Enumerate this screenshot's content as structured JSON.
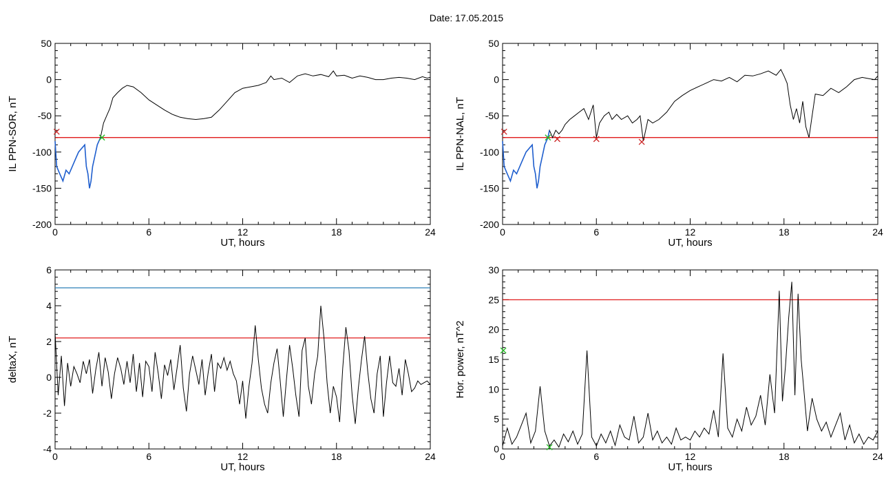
{
  "page": {
    "title": "Date:  17.05.2015"
  },
  "colors": {
    "series": "#000000",
    "threshold": "#dd0000",
    "upper_threshold": "#2a7fb8",
    "highlight": "#1f5fcf",
    "marker_red": "#cc2222",
    "marker_green": "#22bb22"
  },
  "chart_data": [
    {
      "id": "il-sor",
      "type": "line",
      "xlabel": "UT, hours",
      "ylabel": "IL PPN-SOR, nT",
      "xlim": [
        0,
        24
      ],
      "ylim": [
        -200,
        50
      ],
      "xticks": [
        0,
        6,
        12,
        18,
        24
      ],
      "yticks": [
        -200,
        -150,
        -100,
        -50,
        0,
        50
      ],
      "threshold": -80,
      "series": [
        {
          "x": [
            0,
            0.1,
            0.3,
            0.5,
            0.7,
            0.9,
            1.1,
            1.3,
            1.5,
            1.7,
            1.9,
            2.0,
            2.1,
            2.2,
            2.3,
            2.4,
            2.5,
            2.7,
            2.9,
            3.1,
            3.3,
            3.5,
            3.7,
            4.0,
            4.3,
            4.6,
            5.0,
            5.5,
            6.0,
            6.5,
            7.0,
            7.5,
            8.0,
            8.5,
            9.0,
            9.5,
            10.0,
            10.5,
            11.0,
            11.5,
            12.0,
            12.5,
            13.0,
            13.5,
            13.8,
            14.0,
            14.5,
            15.0,
            15.5,
            16.0,
            16.5,
            17.0,
            17.5,
            17.8,
            18.0,
            18.5,
            19.0,
            19.5,
            20.0,
            20.5,
            21.0,
            21.5,
            22.0,
            22.5,
            23.0,
            23.5,
            23.8,
            24.0
          ],
          "y": [
            -85,
            -120,
            -130,
            -140,
            -125,
            -130,
            -120,
            -110,
            -100,
            -95,
            -90,
            -120,
            -130,
            -150,
            -140,
            -120,
            -110,
            -90,
            -80,
            -60,
            -50,
            -40,
            -25,
            -18,
            -12,
            -8,
            -10,
            -18,
            -28,
            -35,
            -42,
            -48,
            -52,
            -54,
            -55,
            -54,
            -52,
            -42,
            -30,
            -18,
            -12,
            -10,
            -8,
            -4,
            5,
            0,
            2,
            -4,
            5,
            8,
            5,
            7,
            4,
            12,
            5,
            6,
            2,
            5,
            3,
            0,
            0,
            2,
            3,
            2,
            0,
            4,
            2,
            3
          ]
        }
      ],
      "highlight": {
        "x_start": 0,
        "x_end": 3
      },
      "markers": [
        {
          "x": 0.1,
          "y": -72,
          "color": "red"
        },
        {
          "x": 3.0,
          "y": -80,
          "color": "green"
        }
      ]
    },
    {
      "id": "il-nal",
      "type": "line",
      "xlabel": "UT, hours",
      "ylabel": "IL PPN-NAL, nT",
      "xlim": [
        0,
        24
      ],
      "ylim": [
        -200,
        50
      ],
      "xticks": [
        0,
        6,
        12,
        18,
        24
      ],
      "yticks": [
        -200,
        -150,
        -100,
        -50,
        0,
        50
      ],
      "threshold": -80,
      "series": [
        {
          "x": [
            0,
            0.1,
            0.3,
            0.5,
            0.7,
            0.9,
            1.1,
            1.3,
            1.5,
            1.7,
            1.9,
            2.0,
            2.1,
            2.2,
            2.3,
            2.4,
            2.5,
            2.7,
            2.9,
            3.0,
            3.2,
            3.4,
            3.6,
            3.8,
            4.0,
            4.3,
            4.6,
            4.9,
            5.2,
            5.5,
            5.8,
            6.0,
            6.2,
            6.5,
            6.8,
            7.0,
            7.3,
            7.6,
            8.0,
            8.3,
            8.6,
            8.8,
            9.0,
            9.3,
            9.6,
            10.0,
            10.5,
            11.0,
            11.5,
            12.0,
            12.5,
            13.0,
            13.5,
            14.0,
            14.5,
            15.0,
            15.5,
            16.0,
            16.5,
            17.0,
            17.5,
            17.8,
            18.0,
            18.2,
            18.4,
            18.6,
            18.8,
            19.0,
            19.2,
            19.4,
            19.6,
            19.8,
            20.0,
            20.5,
            21.0,
            21.5,
            22.0,
            22.5,
            23.0,
            23.5,
            23.8,
            24.0
          ],
          "y": [
            -85,
            -120,
            -130,
            -140,
            -125,
            -130,
            -120,
            -110,
            -100,
            -95,
            -90,
            -120,
            -130,
            -150,
            -140,
            -120,
            -110,
            -90,
            -80,
            -70,
            -80,
            -70,
            -75,
            -70,
            -62,
            -55,
            -50,
            -45,
            -40,
            -55,
            -35,
            -80,
            -60,
            -50,
            -45,
            -55,
            -48,
            -55,
            -50,
            -60,
            -55,
            -50,
            -85,
            -55,
            -60,
            -55,
            -45,
            -30,
            -22,
            -15,
            -10,
            -5,
            0,
            -2,
            3,
            -3,
            6,
            5,
            8,
            12,
            6,
            14,
            5,
            -5,
            -35,
            -55,
            -40,
            -60,
            -30,
            -65,
            -80,
            -50,
            -20,
            -22,
            -12,
            -18,
            -10,
            0,
            3,
            1,
            0,
            5
          ]
        }
      ],
      "highlight": {
        "x_start": 0,
        "x_end": 3
      },
      "markers": [
        {
          "x": 0.1,
          "y": -72,
          "color": "red"
        },
        {
          "x": 2.9,
          "y": -80,
          "color": "green"
        },
        {
          "x": 3.5,
          "y": -82,
          "color": "red"
        },
        {
          "x": 6.0,
          "y": -82,
          "color": "red"
        },
        {
          "x": 8.9,
          "y": -86,
          "color": "red"
        }
      ]
    },
    {
      "id": "delta-x",
      "type": "line",
      "xlabel": "UT, hours",
      "ylabel": "deltaX, nT",
      "xlim": [
        0,
        24
      ],
      "ylim": [
        -4,
        6
      ],
      "xticks": [
        0,
        6,
        12,
        18,
        24
      ],
      "yticks": [
        -4,
        -2,
        0,
        2,
        4,
        6
      ],
      "threshold": 2.2,
      "upper_threshold": 5,
      "series": [
        {
          "x": [
            0,
            0.2,
            0.4,
            0.6,
            0.8,
            1.0,
            1.2,
            1.4,
            1.6,
            1.8,
            2.0,
            2.2,
            2.4,
            2.6,
            2.8,
            3.0,
            3.2,
            3.4,
            3.6,
            3.8,
            4.0,
            4.2,
            4.4,
            4.6,
            4.8,
            5.0,
            5.2,
            5.4,
            5.6,
            5.8,
            6.0,
            6.2,
            6.4,
            6.6,
            6.8,
            7.0,
            7.2,
            7.4,
            7.6,
            7.8,
            8.0,
            8.2,
            8.4,
            8.6,
            8.8,
            9.0,
            9.2,
            9.4,
            9.6,
            9.8,
            10.0,
            10.2,
            10.4,
            10.6,
            10.8,
            11.0,
            11.2,
            11.4,
            11.6,
            11.8,
            12.0,
            12.2,
            12.4,
            12.6,
            12.8,
            13.0,
            13.2,
            13.4,
            13.6,
            13.8,
            14.0,
            14.2,
            14.4,
            14.6,
            14.8,
            15.0,
            15.2,
            15.4,
            15.6,
            15.8,
            16.0,
            16.2,
            16.4,
            16.6,
            16.8,
            17.0,
            17.2,
            17.4,
            17.6,
            17.8,
            18.0,
            18.2,
            18.4,
            18.6,
            18.8,
            19.0,
            19.2,
            19.4,
            19.6,
            19.8,
            20.0,
            20.2,
            20.4,
            20.6,
            20.8,
            21.0,
            21.2,
            21.4,
            21.6,
            21.8,
            22.0,
            22.2,
            22.4,
            22.6,
            22.8,
            23.0,
            23.2,
            23.4,
            23.6,
            23.8,
            24.0
          ],
          "y": [
            2.5,
            -1,
            1.2,
            -1.6,
            0.8,
            -0.5,
            0.6,
            0.2,
            -0.3,
            0.9,
            0.2,
            1.0,
            -0.9,
            0.4,
            1.4,
            -0.5,
            1.1,
            0.3,
            -1.2,
            0.2,
            1.1,
            0.5,
            -0.4,
            0.9,
            -0.3,
            1.3,
            -0.8,
            0.8,
            -1.1,
            0.9,
            0.6,
            -0.8,
            1.4,
            0.2,
            -1.2,
            0.7,
            0.1,
            1.0,
            -0.7,
            0.5,
            1.8,
            -0.6,
            -1.9,
            0.2,
            1.2,
            0.4,
            -0.4,
            1.0,
            -1.0,
            0.3,
            1.3,
            -0.8,
            0.8,
            0.5,
            1.1,
            0.4,
            0.9,
            0.2,
            -0.2,
            -1.5,
            -0.2,
            -2.3,
            -0.5,
            0.8,
            2.9,
            1.0,
            -0.6,
            -1.5,
            -2.0,
            -0.3,
            0.8,
            1.6,
            -0.2,
            -2.2,
            -0.1,
            1.8,
            0.5,
            -1.0,
            -2.2,
            1.5,
            2.2,
            -0.5,
            -1.5,
            0.2,
            1.2,
            4.0,
            2.2,
            -0.3,
            -2.0,
            -0.5,
            -1.1,
            -2.5,
            0.5,
            2.8,
            1.5,
            -1.0,
            -2.6,
            -0.6,
            1.0,
            2.3,
            0.3,
            -1.2,
            -2.0,
            0.2,
            1.2,
            -2.2,
            -0.3,
            1.2,
            -0.3,
            -0.5,
            0.5,
            -1.0,
            1.0,
            0.2,
            -0.8,
            -0.6,
            -0.2,
            -0.4,
            -0.3,
            -0.2,
            -0.4
          ]
        }
      ]
    },
    {
      "id": "hor-power",
      "type": "line",
      "xlabel": "UT, hours",
      "ylabel": "Hor. power, nT^2",
      "xlim": [
        0,
        24
      ],
      "ylim": [
        0,
        30
      ],
      "xticks": [
        0,
        6,
        12,
        18,
        24
      ],
      "yticks": [
        0,
        5,
        10,
        15,
        20,
        25,
        30
      ],
      "threshold": 25,
      "series": [
        {
          "x": [
            0,
            0.3,
            0.6,
            0.9,
            1.2,
            1.5,
            1.8,
            2.1,
            2.4,
            2.7,
            3.0,
            3.3,
            3.6,
            3.9,
            4.2,
            4.5,
            4.8,
            5.1,
            5.4,
            5.7,
            6.0,
            6.3,
            6.6,
            6.9,
            7.2,
            7.5,
            7.8,
            8.1,
            8.4,
            8.7,
            9.0,
            9.3,
            9.6,
            9.9,
            10.2,
            10.5,
            10.8,
            11.1,
            11.4,
            11.7,
            12.0,
            12.3,
            12.6,
            12.9,
            13.2,
            13.5,
            13.8,
            14.1,
            14.4,
            14.7,
            15.0,
            15.3,
            15.6,
            15.9,
            16.2,
            16.5,
            16.8,
            17.1,
            17.4,
            17.7,
            17.9,
            18.1,
            18.3,
            18.5,
            18.7,
            18.9,
            19.1,
            19.3,
            19.5,
            19.8,
            20.1,
            20.4,
            20.7,
            21.0,
            21.3,
            21.6,
            21.9,
            22.2,
            22.5,
            22.8,
            23.1,
            23.4,
            23.7,
            24.0
          ],
          "y": [
            0.5,
            3.5,
            0.8,
            2.0,
            4.0,
            6.0,
            1.0,
            3.0,
            10.5,
            3.0,
            0.5,
            1.5,
            0.3,
            2.5,
            1.2,
            3.0,
            0.8,
            2.5,
            16.5,
            2.0,
            0.5,
            2.5,
            1.0,
            3.0,
            0.6,
            4.0,
            2.0,
            1.5,
            5.5,
            1.0,
            2.0,
            6.0,
            1.5,
            3.0,
            1.0,
            2.0,
            0.8,
            3.5,
            1.5,
            2.0,
            1.5,
            3.0,
            2.0,
            3.5,
            2.5,
            6.5,
            2.0,
            16.0,
            3.5,
            2.0,
            5.0,
            3.0,
            7.0,
            4.0,
            5.5,
            9.0,
            4.0,
            12.5,
            6.0,
            26.5,
            8.0,
            14.0,
            22.0,
            28.0,
            9.0,
            26.0,
            15.0,
            9.0,
            3.0,
            8.5,
            5.0,
            3.0,
            4.5,
            2.0,
            4.0,
            6.0,
            1.5,
            4.0,
            1.0,
            2.5,
            0.8,
            2.0,
            1.5,
            3.0
          ]
        }
      ],
      "markers": [
        {
          "x": 0.05,
          "y": 16.5,
          "color": "green"
        },
        {
          "x": 3.0,
          "y": 0.3,
          "color": "green"
        }
      ]
    }
  ]
}
